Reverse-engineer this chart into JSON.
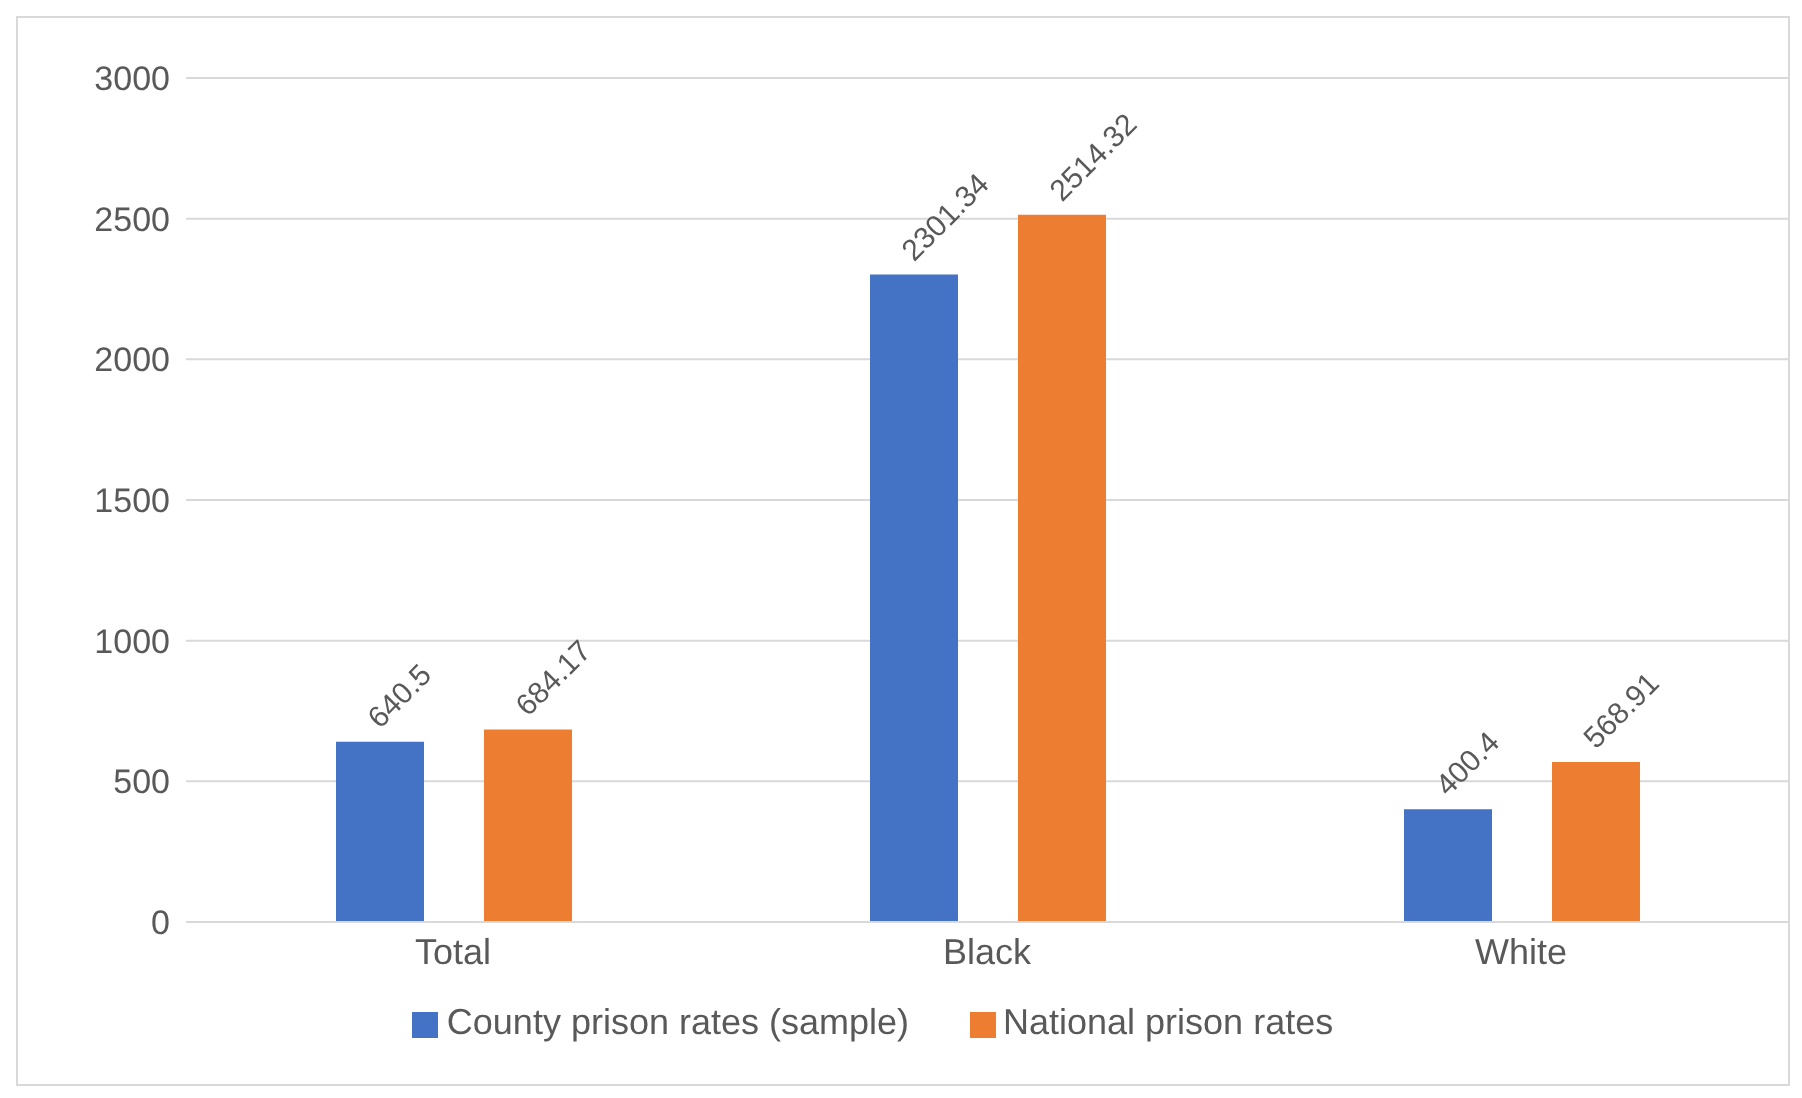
{
  "chart_data": {
    "type": "bar",
    "categories": [
      "Total",
      "Black",
      "White"
    ],
    "series": [
      {
        "name": "County prison rates (sample)",
        "color": "#4472c4",
        "values": [
          640.5,
          2301.34,
          400.4
        ]
      },
      {
        "name": "National prison rates",
        "color": "#ed7d31",
        "values": [
          684.17,
          2514.32,
          568.91
        ]
      }
    ],
    "ylim": [
      0,
      3000
    ],
    "yticks": [
      0,
      500,
      1000,
      1500,
      2000,
      2500,
      3000
    ],
    "grid": "y",
    "legend": "bottom",
    "data_labels": true
  }
}
